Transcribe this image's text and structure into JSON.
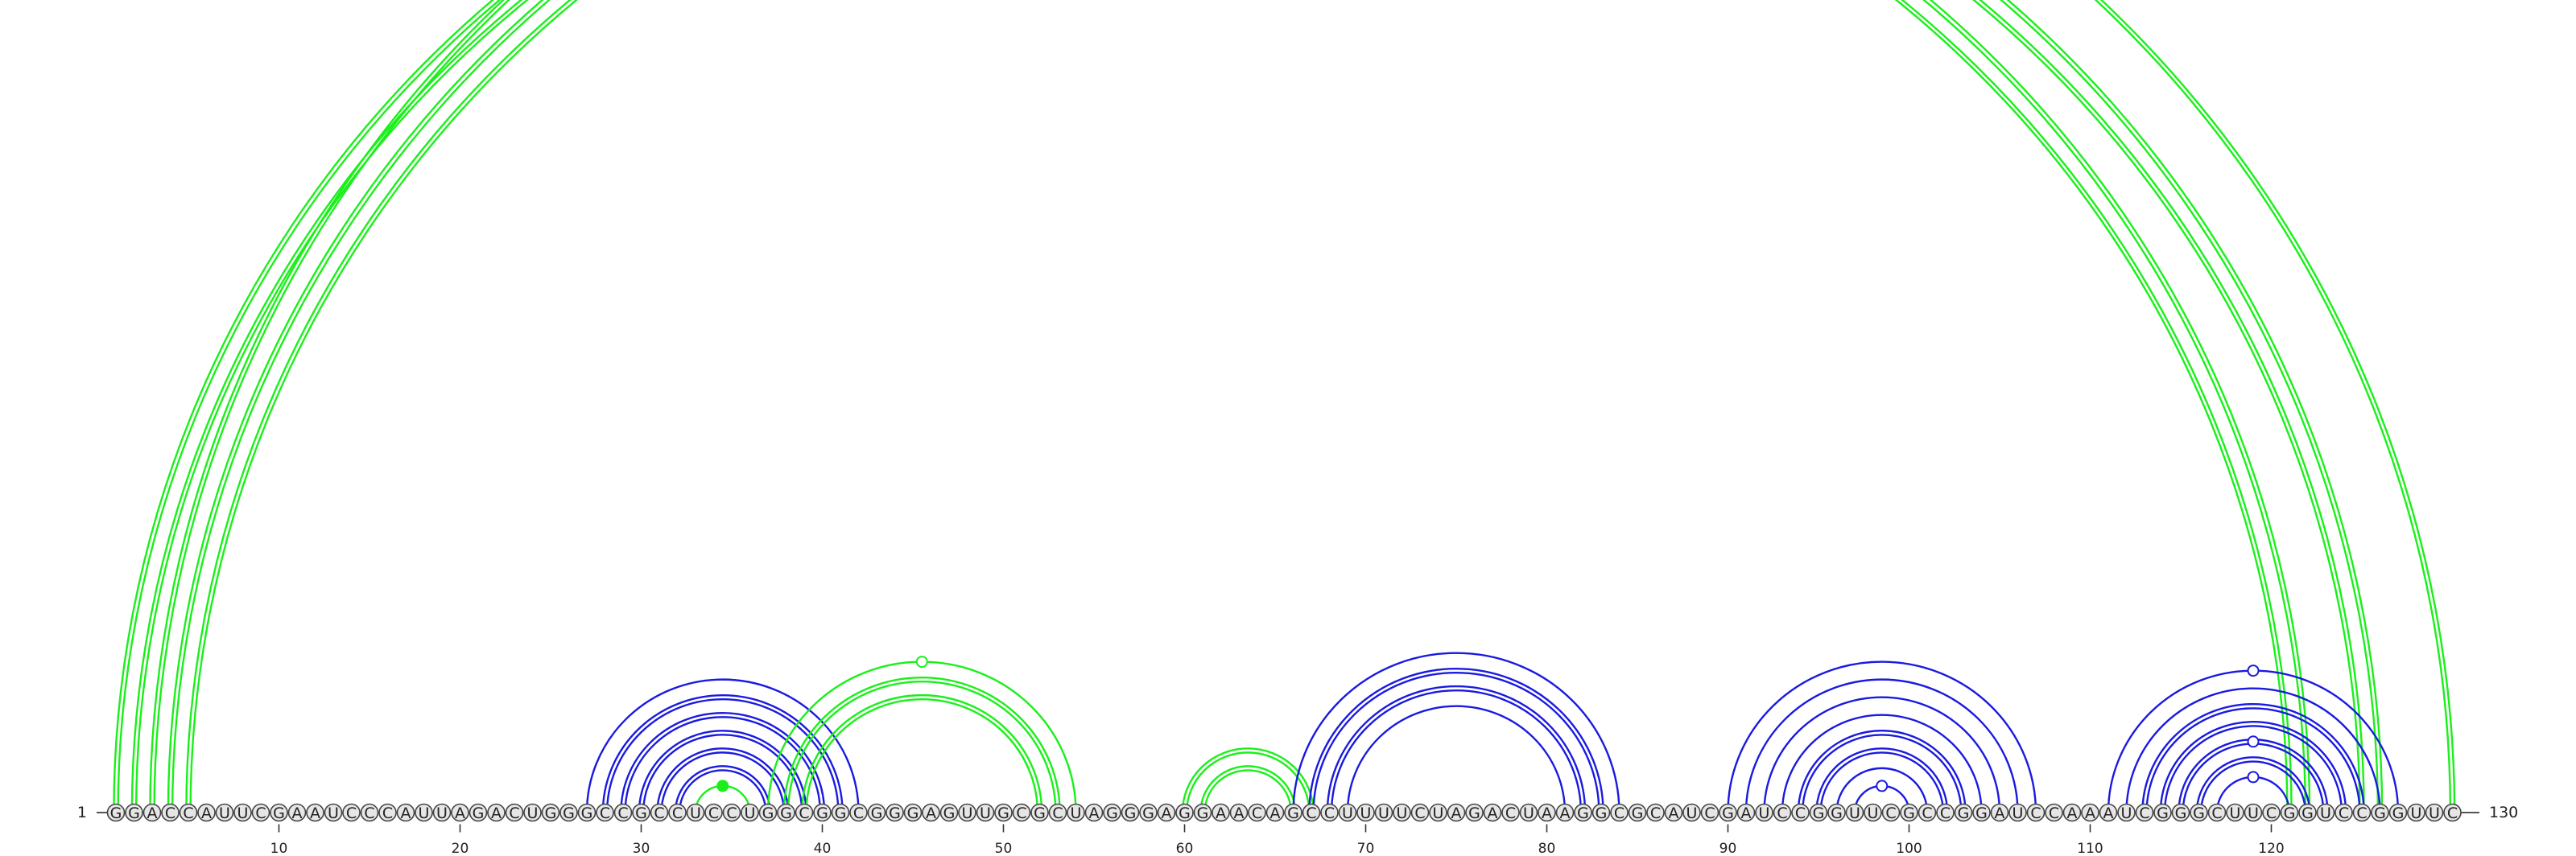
{
  "diagram": {
    "type": "rna-arc-diagram",
    "sequence": "GGACCAUUCGAAUCCCAUUAGACUGGGCCGCCUCCUGGCGGCGGGAGUUGCGCUAGGGAGGAACAGCCUUUUCUAGACUAAGGCGCAUCGAUCCGGUUCGCCGGAUCCAAAUCGGGCUUCGGUCCGGUUC",
    "start_label": "1",
    "end_label": "130",
    "tick_labels": [
      "10",
      "20",
      "30",
      "40",
      "50",
      "60",
      "70",
      "80",
      "90",
      "100",
      "110",
      "120"
    ],
    "colors": {
      "green": "#19f019",
      "blue": "#1a1ae0",
      "node_fill": "#e6e6e6",
      "node_stroke": "#444444",
      "backbone": "#555555"
    },
    "arcs": [
      {
        "i": 1,
        "j": 122,
        "color": "green",
        "double": true
      },
      {
        "i": 2,
        "j": 121,
        "color": "green",
        "double": true
      },
      {
        "i": 3,
        "j": 130,
        "color": "green",
        "double": true
      },
      {
        "i": 4,
        "j": 126,
        "color": "green",
        "double": true
      },
      {
        "i": 5,
        "j": 125,
        "color": "green",
        "double": true
      },
      {
        "i": 27,
        "j": 42,
        "color": "blue",
        "double": false
      },
      {
        "i": 28,
        "j": 41,
        "color": "blue",
        "double": true
      },
      {
        "i": 29,
        "j": 40,
        "color": "blue",
        "double": true
      },
      {
        "i": 30,
        "j": 39,
        "color": "blue",
        "double": true
      },
      {
        "i": 31,
        "j": 38,
        "color": "blue",
        "double": true
      },
      {
        "i": 32,
        "j": 37,
        "color": "blue",
        "double": true
      },
      {
        "i": 33,
        "j": 36,
        "color": "green",
        "double": false
      },
      {
        "i": 37,
        "j": 54,
        "color": "green",
        "double": false
      },
      {
        "i": 38,
        "j": 53,
        "color": "green",
        "double": true
      },
      {
        "i": 39,
        "j": 52,
        "color": "green",
        "double": true
      },
      {
        "i": 60,
        "j": 67,
        "color": "green",
        "double": true
      },
      {
        "i": 61,
        "j": 66,
        "color": "green",
        "double": true
      },
      {
        "i": 66,
        "j": 84,
        "color": "blue",
        "double": false
      },
      {
        "i": 67,
        "j": 83,
        "color": "blue",
        "double": true
      },
      {
        "i": 68,
        "j": 82,
        "color": "blue",
        "double": true
      },
      {
        "i": 69,
        "j": 81,
        "color": "blue",
        "double": false
      },
      {
        "i": 90,
        "j": 107,
        "color": "blue",
        "double": false
      },
      {
        "i": 91,
        "j": 106,
        "color": "blue",
        "double": false
      },
      {
        "i": 92,
        "j": 105,
        "color": "blue",
        "double": false
      },
      {
        "i": 93,
        "j": 104,
        "color": "blue",
        "double": false
      },
      {
        "i": 94,
        "j": 103,
        "color": "blue",
        "double": true
      },
      {
        "i": 95,
        "j": 102,
        "color": "blue",
        "double": true
      },
      {
        "i": 96,
        "j": 101,
        "color": "blue",
        "double": false
      },
      {
        "i": 97,
        "j": 100,
        "color": "blue",
        "double": false
      },
      {
        "i": 111,
        "j": 127,
        "color": "blue",
        "double": false
      },
      {
        "i": 112,
        "j": 126,
        "color": "blue",
        "double": false
      },
      {
        "i": 113,
        "j": 125,
        "color": "blue",
        "double": true
      },
      {
        "i": 114,
        "j": 124,
        "color": "blue",
        "double": true
      },
      {
        "i": 115,
        "j": 123,
        "color": "blue",
        "double": true
      },
      {
        "i": 116,
        "j": 122,
        "color": "blue",
        "double": true
      },
      {
        "i": 117,
        "j": 121,
        "color": "blue",
        "double": false
      }
    ],
    "markers": [
      {
        "i": 3,
        "j": 130,
        "filled": false
      },
      {
        "i": 33,
        "j": 36,
        "filled": true
      },
      {
        "i": 37,
        "j": 54,
        "filled": false
      },
      {
        "i": 97,
        "j": 100,
        "filled": false
      },
      {
        "i": 111,
        "j": 127,
        "filled": false
      },
      {
        "i": 115,
        "j": 123,
        "filled": false
      },
      {
        "i": 117,
        "j": 121,
        "filled": false
      }
    ]
  }
}
